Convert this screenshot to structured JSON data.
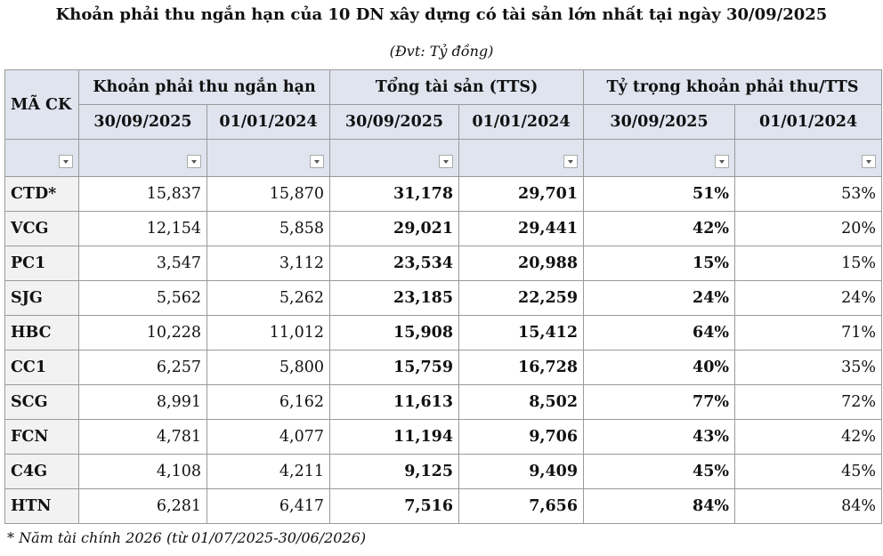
{
  "header": {
    "title": "Khoản phải thu ngắn hạn của 10 DN xây dựng có tài sản lớn nhất tại ngày 30/09/2025",
    "unit": "(Đvt: Tỷ đồng)"
  },
  "table": {
    "code_header": "MÃ CK",
    "groups": [
      "Khoản phải thu ngắn hạn",
      "Tổng tài sản (TTS)",
      "Tỷ trọng khoản phải thu/TTS"
    ],
    "dates": [
      "30/09/2025",
      "01/01/2024",
      "30/09/2025",
      "01/01/2024",
      "30/09/2025",
      "01/01/2024"
    ],
    "rows": [
      [
        "CTD*",
        "15,837",
        "15,870",
        "31,178",
        "29,701",
        "51%",
        "53%"
      ],
      [
        "VCG",
        "12,154",
        "5,858",
        "29,021",
        "29,441",
        "42%",
        "20%"
      ],
      [
        "PC1",
        "3,547",
        "3,112",
        "23,534",
        "20,988",
        "15%",
        "15%"
      ],
      [
        "SJG",
        "5,562",
        "5,262",
        "23,185",
        "22,259",
        "24%",
        "24%"
      ],
      [
        "HBC",
        "10,228",
        "11,012",
        "15,908",
        "15,412",
        "64%",
        "71%"
      ],
      [
        "CC1",
        "6,257",
        "5,800",
        "15,759",
        "16,728",
        "40%",
        "35%"
      ],
      [
        "SCG",
        "8,991",
        "6,162",
        "11,613",
        "8,502",
        "77%",
        "72%"
      ],
      [
        "FCN",
        "4,781",
        "4,077",
        "11,194",
        "9,706",
        "43%",
        "42%"
      ],
      [
        "C4G",
        "4,108",
        "4,211",
        "9,125",
        "9,409",
        "45%",
        "45%"
      ],
      [
        "HTN",
        "6,281",
        "6,417",
        "7,516",
        "7,656",
        "84%",
        "84%"
      ]
    ]
  },
  "footnote": "* Năm tài chính 2026 (từ 01/07/2025-30/06/2026)"
}
